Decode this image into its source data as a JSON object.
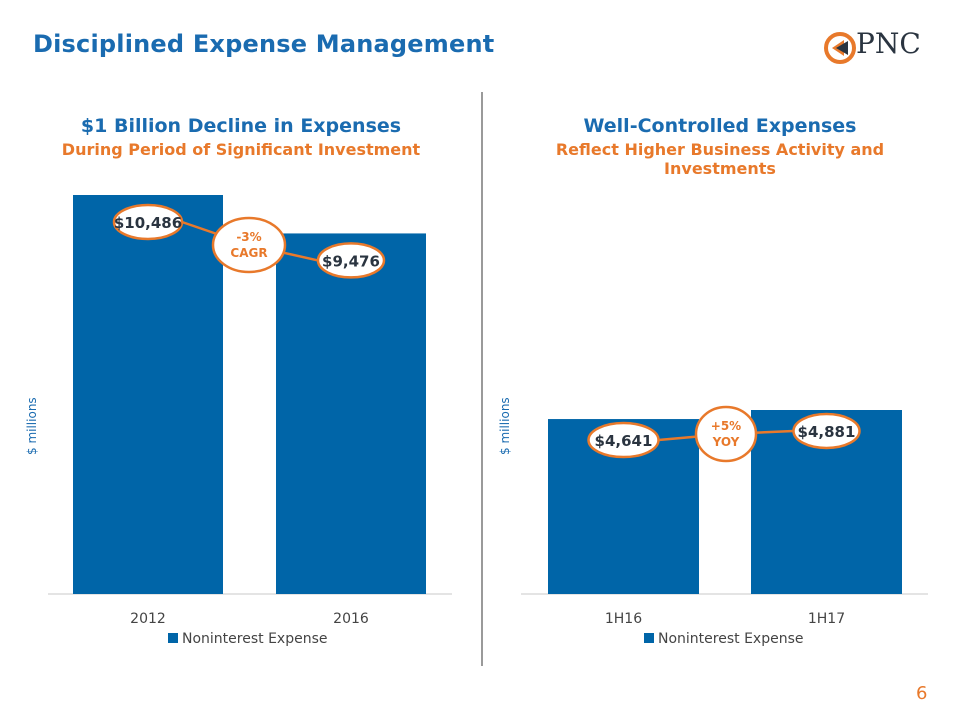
{
  "page": {
    "title": "Disciplined Expense Management",
    "page_number": "6"
  },
  "logo": {
    "text": "PNC",
    "brand_color": "#e8792b"
  },
  "colors": {
    "bar": "#0065a8",
    "accent": "#e8792b",
    "title": "#1a6bb0"
  },
  "chart_data": [
    {
      "type": "bar",
      "title": "$1 Billion Decline in Expenses",
      "subtitle": "During Period of Significant Investment",
      "categories": [
        "2012",
        "2016"
      ],
      "series": [
        {
          "name": "Noninterest Expense",
          "values": [
            10486,
            9476
          ]
        }
      ],
      "data_labels": [
        "$10,486",
        "$9,476"
      ],
      "annotation": {
        "line1": "-3%",
        "line2": "CAGR"
      },
      "ylabel": "$ millions",
      "ylim": [
        0,
        10486
      ],
      "legend": "bottom"
    },
    {
      "type": "bar",
      "title": "Well-Controlled Expenses",
      "subtitle": "Reflect Higher Business Activity and Investments",
      "categories": [
        "1H16",
        "1H17"
      ],
      "series": [
        {
          "name": "Noninterest Expense",
          "values": [
            4641,
            4881
          ]
        }
      ],
      "data_labels": [
        "$4,641",
        "$4,881"
      ],
      "annotation": {
        "line1": "+5%",
        "line2": "YOY"
      },
      "ylabel": "$ millions",
      "ylim": [
        0,
        4881
      ],
      "legend": "bottom"
    }
  ]
}
